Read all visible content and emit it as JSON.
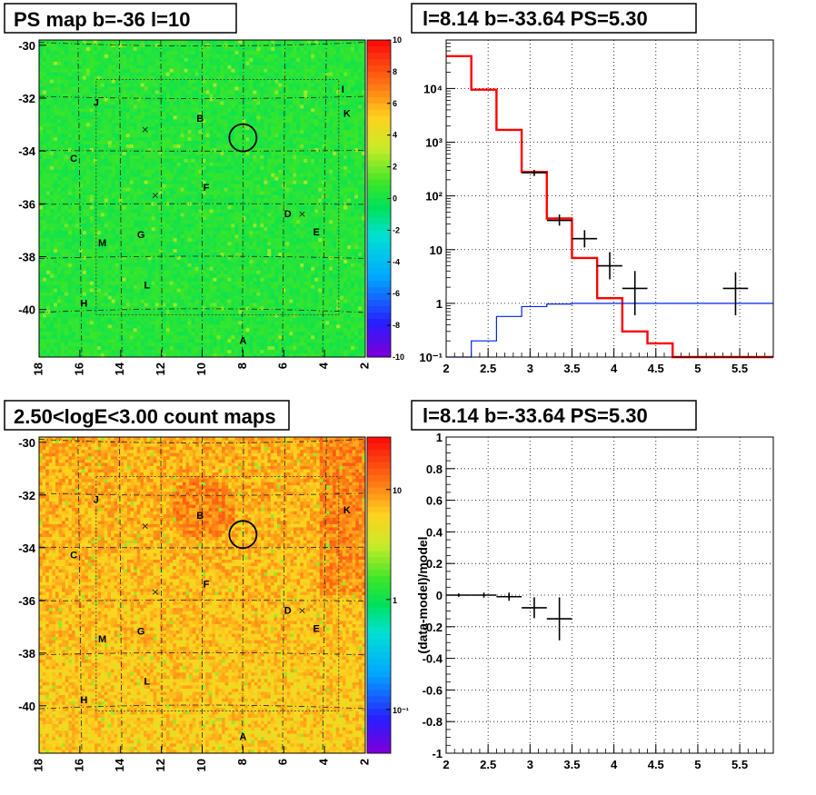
{
  "chart_data": [
    {
      "type": "heatmap",
      "title": "PS map b=-36 l=10",
      "x_ticks": [
        "18",
        "16",
        "14",
        "12",
        "10",
        "8",
        "6",
        "4",
        "2"
      ],
      "y_ticks": [
        "-30",
        "-32",
        "-34",
        "-36",
        "-38",
        "-40"
      ],
      "xlim": [
        18,
        2
      ],
      "ylim": [
        -41.8,
        -29.8
      ],
      "colorbar_ticks": [
        "10",
        "8",
        "6",
        "4",
        "2",
        "0",
        "-2",
        "-4",
        "-6",
        "-8",
        "-10"
      ],
      "colorbar_range": [
        -10,
        10
      ],
      "background_value": 0.5,
      "source_labels": [
        {
          "text": "J",
          "l": 15.2,
          "b": -32.2
        },
        {
          "text": "I",
          "l": 3.1,
          "b": -31.7
        },
        {
          "text": "K",
          "l": 2.9,
          "b": -32.6
        },
        {
          "text": "B",
          "l": 10.1,
          "b": -32.8
        },
        {
          "text": "C",
          "l": 16.3,
          "b": -34.3
        },
        {
          "text": "F",
          "l": 9.8,
          "b": -35.4
        },
        {
          "text": "D",
          "l": 5.8,
          "b": -36.4
        },
        {
          "text": "E",
          "l": 4.4,
          "b": -37.1
        },
        {
          "text": "M",
          "l": 14.9,
          "b": -37.5
        },
        {
          "text": "G",
          "l": 13.0,
          "b": -37.2
        },
        {
          "text": "L",
          "l": 12.7,
          "b": -39.1
        },
        {
          "text": "H",
          "l": 15.8,
          "b": -39.8
        },
        {
          "text": "A",
          "l": 8.0,
          "b": -41.2
        }
      ],
      "x_markers": [
        {
          "l": 12.8,
          "b": -33.2
        },
        {
          "l": 12.3,
          "b": -35.7
        },
        {
          "l": 5.1,
          "b": -36.4
        }
      ],
      "circle": {
        "l": 8.0,
        "b": -33.5
      }
    },
    {
      "type": "line",
      "title": "l=8.14 b=-33.64 PS=5.30",
      "x_ticks": [
        "2",
        "2.5",
        "3",
        "3.5",
        "4",
        "4.5",
        "5",
        "5.5"
      ],
      "y_ticks": [
        "10⁻¹",
        "1",
        "10",
        "10²",
        "10³",
        "10⁴"
      ],
      "xlim": [
        2,
        5.9
      ],
      "ylim": [
        0.1,
        80000
      ],
      "yscale": "log",
      "grid": true,
      "series": [
        {
          "values": [
            [
              2.0,
              2.3,
              40000
            ],
            [
              2.3,
              2.6,
              9500
            ],
            [
              2.6,
              2.9,
              1700
            ],
            [
              2.9,
              3.2,
              280
            ],
            [
              3.2,
              3.5,
              38
            ],
            [
              3.5,
              3.8,
              7
            ],
            [
              3.8,
              4.1,
              1.25
            ],
            [
              4.1,
              4.4,
              0.3
            ],
            [
              4.4,
              4.7,
              0.18
            ],
            [
              4.7,
              5.9,
              0.1
            ]
          ]
        },
        {
          "values": [
            [
              2.0,
              2.3,
              0.09
            ],
            [
              2.3,
              2.6,
              0.2
            ],
            [
              2.6,
              2.9,
              0.57
            ],
            [
              2.9,
              3.2,
              0.87
            ],
            [
              3.2,
              3.5,
              0.97
            ],
            [
              3.5,
              5.9,
              1.0
            ]
          ]
        }
      ],
      "points": [
        {
          "x": 3.05,
          "y": 270,
          "xerr": 0.15,
          "ylo": 235,
          "yhi": 305
        },
        {
          "x": 3.35,
          "y": 35,
          "xerr": 0.15,
          "ylo": 28,
          "yhi": 45
        },
        {
          "x": 3.65,
          "y": 16,
          "xerr": 0.15,
          "ylo": 11,
          "yhi": 23
        },
        {
          "x": 3.95,
          "y": 5,
          "xerr": 0.15,
          "ylo": 2.8,
          "yhi": 9
        },
        {
          "x": 4.25,
          "y": 1.9,
          "xerr": 0.15,
          "ylo": 0.6,
          "yhi": 4
        },
        {
          "x": 5.45,
          "y": 1.9,
          "xerr": 0.15,
          "ylo": 0.6,
          "yhi": 3.8
        }
      ]
    },
    {
      "type": "heatmap",
      "title": "2.50<logE<3.00 count maps",
      "x_ticks": [
        "18",
        "16",
        "14",
        "12",
        "10",
        "8",
        "6",
        "4",
        "2"
      ],
      "y_ticks": [
        "-30",
        "-32",
        "-34",
        "-36",
        "-38",
        "-40"
      ],
      "xlim": [
        18,
        2
      ],
      "ylim": [
        -41.8,
        -29.8
      ],
      "colorbar_ticks": [
        "10",
        "1",
        "10⁻¹"
      ],
      "colorbar_range": [
        0.04,
        30
      ],
      "colorbar_scale": "log",
      "source_labels": [
        {
          "text": "J",
          "l": 15.2,
          "b": -32.2
        },
        {
          "text": "K",
          "l": 2.9,
          "b": -32.6
        },
        {
          "text": "B",
          "l": 10.1,
          "b": -32.8
        },
        {
          "text": "C",
          "l": 16.3,
          "b": -34.3
        },
        {
          "text": "F",
          "l": 9.8,
          "b": -35.4
        },
        {
          "text": "D",
          "l": 5.8,
          "b": -36.4
        },
        {
          "text": "E",
          "l": 4.4,
          "b": -37.1
        },
        {
          "text": "M",
          "l": 14.9,
          "b": -37.5
        },
        {
          "text": "G",
          "l": 13.0,
          "b": -37.2
        },
        {
          "text": "L",
          "l": 12.7,
          "b": -39.1
        },
        {
          "text": "H",
          "l": 15.8,
          "b": -39.8
        },
        {
          "text": "A",
          "l": 8.0,
          "b": -41.2
        }
      ],
      "x_markers": [
        {
          "l": 12.8,
          "b": -33.2
        },
        {
          "l": 12.3,
          "b": -35.7
        },
        {
          "l": 5.1,
          "b": -36.4
        }
      ],
      "circle": {
        "l": 8.0,
        "b": -33.5
      }
    },
    {
      "type": "scatter",
      "title": "l=8.14 b=-33.64 PS=5.30",
      "ylabel": "(data-model)/model",
      "x_ticks": [
        "2",
        "2.5",
        "3",
        "3.5",
        "4",
        "4.5",
        "5",
        "5.5"
      ],
      "y_ticks": [
        "1",
        "0.8",
        "0.6",
        "0.4",
        "0.2",
        "0",
        "-0.2",
        "-0.4",
        "-0.6",
        "-0.8",
        "-1"
      ],
      "xlim": [
        2,
        5.9
      ],
      "ylim": [
        -1,
        1
      ],
      "grid": true,
      "points": [
        {
          "x": 2.15,
          "y": 0.0,
          "xerr": 0.15,
          "yerr": 0.005
        },
        {
          "x": 2.45,
          "y": 0.0,
          "xerr": 0.15,
          "yerr": 0.01
        },
        {
          "x": 2.75,
          "y": -0.01,
          "xerr": 0.15,
          "yerr": 0.02
        },
        {
          "x": 3.05,
          "y": -0.08,
          "xerr": 0.15,
          "yerr": 0.06
        },
        {
          "x": 3.35,
          "y": -0.15,
          "xerr": 0.15,
          "yerr": 0.13
        }
      ]
    }
  ]
}
